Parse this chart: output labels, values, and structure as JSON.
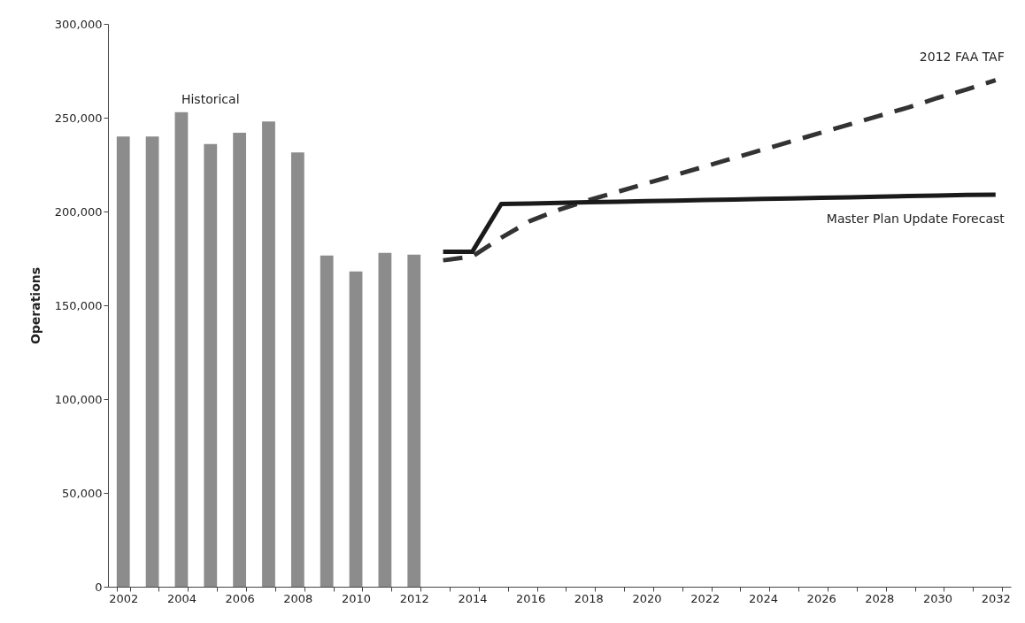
{
  "chart_data": {
    "type": "bar",
    "ylabel": "Operations",
    "categories": [
      "2002",
      null,
      "2004",
      null,
      "2006",
      null,
      "2008",
      null,
      "2010",
      null,
      "2012",
      null,
      "2014",
      null,
      "2016",
      null,
      "2018",
      null,
      "2020",
      null,
      "2022",
      null,
      "2024",
      null,
      "2026",
      null,
      "2028",
      null,
      "2030",
      null,
      "2032"
    ],
    "series": [
      {
        "name": "Historical",
        "color": "#8c8c8c",
        "values": [
          240000,
          240000,
          253000,
          236000,
          242000,
          248000,
          231500,
          176500,
          168000,
          178000,
          177000,
          null,
          null,
          null,
          null,
          null,
          null,
          null,
          null,
          null,
          null,
          null,
          null,
          null,
          null,
          null,
          null,
          null,
          null,
          null,
          null
        ]
      },
      {
        "name": "2012 FAA TAF",
        "type": "line",
        "color": "#333333",
        "line_style": "dashed",
        "values": [
          null,
          null,
          null,
          null,
          null,
          null,
          null,
          null,
          null,
          null,
          null,
          174000,
          176000,
          186000,
          195000,
          201000,
          206000,
          210500,
          215000,
          219500,
          224000,
          228500,
          233000,
          237500,
          242000,
          246500,
          251000,
          255500,
          260500,
          265000,
          270000
        ]
      },
      {
        "name": "Master Plan Update Forecast",
        "type": "line",
        "color": "#1a1a1a",
        "line_style": "solid",
        "values": [
          null,
          null,
          null,
          null,
          null,
          null,
          null,
          null,
          null,
          null,
          null,
          178500,
          178500,
          204000,
          204300,
          204600,
          204900,
          205200,
          205500,
          205800,
          206100,
          206400,
          206700,
          207000,
          207300,
          207600,
          207900,
          208200,
          208500,
          208800,
          209000
        ]
      }
    ],
    "ylim": [
      0,
      300000
    ],
    "yticks": [
      0,
      {
        "value": 50000,
        "label": "50,000"
      },
      {
        "value": 100000,
        "label": "100,000"
      },
      {
        "value": 150000,
        "label": "150,000"
      },
      {
        "value": 200000,
        "label": "200,000"
      },
      {
        "value": 250000,
        "label": "250,000"
      },
      {
        "value": 300000,
        "label": "300,000"
      }
    ],
    "grid": false
  }
}
